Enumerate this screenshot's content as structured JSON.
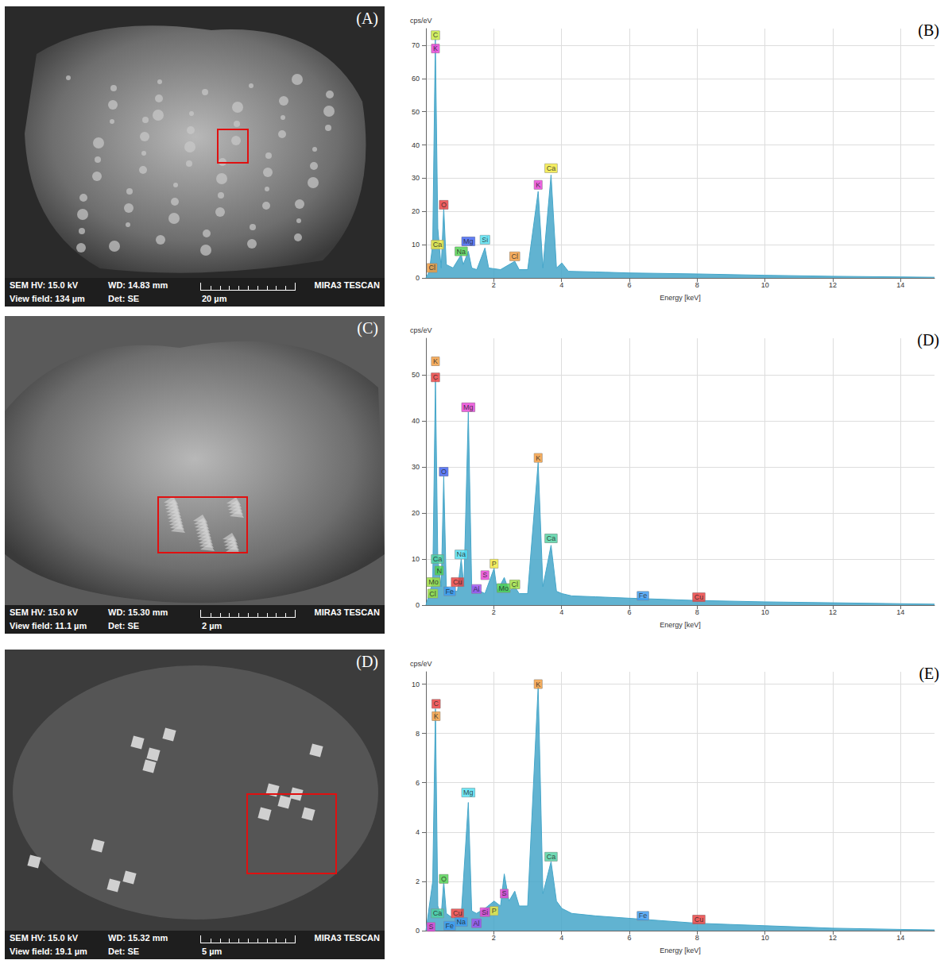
{
  "chart_data": [
    {
      "type": "area",
      "letter": "(B)",
      "y_label": "cps/eV",
      "x_label": "Energy [keV]",
      "color": "#45a6c9",
      "xlim": [
        0,
        15
      ],
      "xticks": [
        2,
        4,
        6,
        8,
        10,
        12,
        14
      ],
      "ylim": [
        0,
        75
      ],
      "yticks": [
        0,
        10,
        20,
        30,
        40,
        50,
        60,
        70
      ],
      "grid": true,
      "x": [
        0,
        0.1,
        0.2,
        0.277,
        0.35,
        0.45,
        0.525,
        0.6,
        0.8,
        1.04,
        1.1,
        1.25,
        1.35,
        1.5,
        1.74,
        1.85,
        2.2,
        2.62,
        2.75,
        3.0,
        3.31,
        3.45,
        3.69,
        3.85,
        4.01,
        4.2,
        5,
        6,
        8,
        10,
        12,
        14,
        15
      ],
      "values": [
        0,
        2,
        10,
        72,
        15,
        3,
        21,
        4,
        3,
        7,
        4,
        8,
        3,
        2.5,
        9,
        3,
        2.5,
        5,
        2.5,
        2.5,
        26,
        3,
        31,
        3,
        4.5,
        2,
        1.8,
        1.5,
        1.2,
        0.8,
        0.5,
        0.3,
        0.2
      ],
      "peaks": [
        {
          "label": "C",
          "x": 0.28,
          "y": 73,
          "color": "#c6ea3c"
        },
        {
          "label": "K",
          "x": 0.28,
          "y": 69,
          "color": "#e83fd6"
        },
        {
          "label": "Ca",
          "x": 0.34,
          "y": 10,
          "color": "#f2ea3a"
        },
        {
          "label": "Cl",
          "x": 0.18,
          "y": 3,
          "color": "#f29a3a"
        },
        {
          "label": "O",
          "x": 0.525,
          "y": 22,
          "color": "#ea3a3a"
        },
        {
          "label": "Na",
          "x": 1.04,
          "y": 8,
          "color": "#4cd14c"
        },
        {
          "label": "Mg",
          "x": 1.25,
          "y": 11,
          "color": "#3a5ef2"
        },
        {
          "label": "Si",
          "x": 1.74,
          "y": 11.5,
          "color": "#4ee0f2"
        },
        {
          "label": "Cl",
          "x": 2.62,
          "y": 6.5,
          "color": "#f29a3a"
        },
        {
          "label": "K",
          "x": 3.31,
          "y": 28,
          "color": "#e83fd6"
        },
        {
          "label": "Ca",
          "x": 3.69,
          "y": 33,
          "color": "#f2ea3a"
        }
      ]
    },
    {
      "type": "area",
      "letter": "(D)",
      "y_label": "cps/eV",
      "x_label": "Energy [keV]",
      "color": "#45a6c9",
      "xlim": [
        0,
        15
      ],
      "xticks": [
        2,
        4,
        6,
        8,
        10,
        12,
        14
      ],
      "ylim": [
        0,
        58
      ],
      "yticks": [
        0,
        10,
        20,
        30,
        40,
        50
      ],
      "grid": true,
      "x": [
        0,
        0.2,
        0.28,
        0.35,
        0.45,
        0.525,
        0.6,
        0.8,
        0.93,
        1.04,
        1.12,
        1.25,
        1.35,
        1.49,
        1.6,
        1.74,
        2.01,
        2.1,
        2.31,
        2.45,
        2.62,
        2.75,
        3.0,
        3.31,
        3.45,
        3.69,
        3.85,
        4.01,
        4.3,
        5,
        6,
        8,
        10,
        12,
        14,
        15
      ],
      "values": [
        0,
        5,
        49,
        10,
        4,
        28,
        4,
        3,
        3,
        10,
        4,
        42,
        4,
        4,
        3,
        2.5,
        8,
        3,
        6,
        3,
        4,
        2.5,
        2.5,
        31,
        4,
        13,
        3,
        2.5,
        2,
        1.8,
        1.5,
        1,
        0.7,
        0.5,
        0.3,
        0.2
      ],
      "peaks": [
        {
          "label": "K",
          "x": 0.28,
          "y": 53,
          "color": "#f29a3a"
        },
        {
          "label": "C",
          "x": 0.28,
          "y": 49.5,
          "color": "#ea3a3a"
        },
        {
          "label": "O",
          "x": 0.525,
          "y": 29,
          "color": "#3a5ef2"
        },
        {
          "label": "Ca",
          "x": 0.34,
          "y": 10,
          "color": "#4cd1a0"
        },
        {
          "label": "N",
          "x": 0.39,
          "y": 7.5,
          "color": "#4cd14c"
        },
        {
          "label": "Mo",
          "x": 0.22,
          "y": 5,
          "color": "#9ae03a"
        },
        {
          "label": "Cl",
          "x": 0.2,
          "y": 2.5,
          "color": "#9ae03a"
        },
        {
          "label": "Fe",
          "x": 0.7,
          "y": 3,
          "color": "#3a9af2"
        },
        {
          "label": "Cu",
          "x": 0.93,
          "y": 5,
          "color": "#ea3a3a"
        },
        {
          "label": "Na",
          "x": 1.04,
          "y": 11,
          "color": "#4ee0f2"
        },
        {
          "label": "Mg",
          "x": 1.25,
          "y": 43,
          "color": "#e83fd6"
        },
        {
          "label": "Al",
          "x": 1.49,
          "y": 3.5,
          "color": "#a04cf2"
        },
        {
          "label": "S",
          "x": 1.74,
          "y": 6.5,
          "color": "#e83fd6"
        },
        {
          "label": "P",
          "x": 2.01,
          "y": 9,
          "color": "#f2ea3a"
        },
        {
          "label": "Mo",
          "x": 2.29,
          "y": 3.7,
          "color": "#4cd14c"
        },
        {
          "label": "Cl",
          "x": 2.62,
          "y": 4.5,
          "color": "#9ae03a"
        },
        {
          "label": "K",
          "x": 3.31,
          "y": 32,
          "color": "#f29a3a"
        },
        {
          "label": "Ca",
          "x": 3.69,
          "y": 14.5,
          "color": "#4cd1a0"
        },
        {
          "label": "Fe",
          "x": 6.4,
          "y": 2,
          "color": "#3a9af2"
        },
        {
          "label": "Cu",
          "x": 8.05,
          "y": 1.7,
          "color": "#ea3a3a"
        }
      ]
    },
    {
      "type": "area",
      "letter": "(E)",
      "y_label": "cps/eV",
      "x_label": "Energy [keV]",
      "color": "#45a6c9",
      "xlim": [
        0,
        15
      ],
      "xticks": [
        2,
        4,
        6,
        8,
        10,
        12,
        14
      ],
      "ylim": [
        0,
        10.5
      ],
      "yticks": [
        0,
        2,
        4,
        6,
        8,
        10
      ],
      "grid": true,
      "x": [
        0,
        0.2,
        0.28,
        0.35,
        0.45,
        0.525,
        0.6,
        0.8,
        0.93,
        1.04,
        1.25,
        1.35,
        1.49,
        1.74,
        2.01,
        2.2,
        2.31,
        2.45,
        2.62,
        2.75,
        3.0,
        3.31,
        3.45,
        3.69,
        3.85,
        4.01,
        4.3,
        5,
        6,
        8,
        10,
        12,
        14,
        15
      ],
      "values": [
        0,
        2,
        9,
        1,
        0.6,
        2,
        0.7,
        0.5,
        0.6,
        0.6,
        5.2,
        0.8,
        0.7,
        0.9,
        1.2,
        1,
        2.3,
        1.2,
        1.6,
        1,
        1,
        9.9,
        1.5,
        2.8,
        1.2,
        0.9,
        0.7,
        0.6,
        0.5,
        0.3,
        0.2,
        0.1,
        0.05,
        0.03
      ],
      "peaks": [
        {
          "label": "C",
          "x": 0.3,
          "y": 9.2,
          "color": "#ea3a3a"
        },
        {
          "label": "K",
          "x": 0.3,
          "y": 8.7,
          "color": "#f29a3a"
        },
        {
          "label": "O",
          "x": 0.525,
          "y": 2.1,
          "color": "#4cd14c"
        },
        {
          "label": "Ca",
          "x": 0.34,
          "y": 0.7,
          "color": "#4cd1a0"
        },
        {
          "label": "S",
          "x": 0.15,
          "y": 0.15,
          "color": "#e83fd6"
        },
        {
          "label": "Cu",
          "x": 0.93,
          "y": 0.7,
          "color": "#ea3a3a"
        },
        {
          "label": "Na",
          "x": 1.04,
          "y": 0.35,
          "color": "#3a9af2"
        },
        {
          "label": "Fe",
          "x": 0.7,
          "y": 0.2,
          "color": "#3a9af2"
        },
        {
          "label": "Mg",
          "x": 1.25,
          "y": 5.6,
          "color": "#4ee0f2"
        },
        {
          "label": "Al",
          "x": 1.49,
          "y": 0.3,
          "color": "#a04cf2"
        },
        {
          "label": "Si",
          "x": 1.74,
          "y": 0.75,
          "color": "#e83fd6"
        },
        {
          "label": "P",
          "x": 2.01,
          "y": 0.8,
          "color": "#f2ea3a"
        },
        {
          "label": "S",
          "x": 2.31,
          "y": 1.5,
          "color": "#e83fd6"
        },
        {
          "label": "K",
          "x": 3.31,
          "y": 10,
          "color": "#f29a3a"
        },
        {
          "label": "Ca",
          "x": 3.69,
          "y": 3,
          "color": "#4cd1a0"
        },
        {
          "label": "Fe",
          "x": 6.4,
          "y": 0.6,
          "color": "#3a9af2"
        },
        {
          "label": "Cu",
          "x": 8.05,
          "y": 0.45,
          "color": "#ea3a3a"
        }
      ]
    }
  ],
  "images": [
    {
      "letter": "(A)",
      "hv": "SEM HV: 15.0 kV",
      "wd": "WD: 14.83 mm",
      "brand": "MIRA3 TESCAN",
      "view": "View field: 134 µm",
      "det": "Det: SE",
      "scale": "20 µm"
    },
    {
      "letter": "(C)",
      "hv": "SEM HV: 15.0 kV",
      "wd": "WD: 15.30 mm",
      "brand": "MIRA3 TESCAN",
      "view": "View field: 11.1 µm",
      "det": "Det: SE",
      "scale": "2 µm"
    },
    {
      "letter": "(D)",
      "hv": "SEM HV: 15.0 kV",
      "wd": "WD: 15.32 mm",
      "brand": "MIRA3 TESCAN",
      "view": "View field: 19.1 µm",
      "det": "Det: SE",
      "scale": "5 µm"
    }
  ]
}
